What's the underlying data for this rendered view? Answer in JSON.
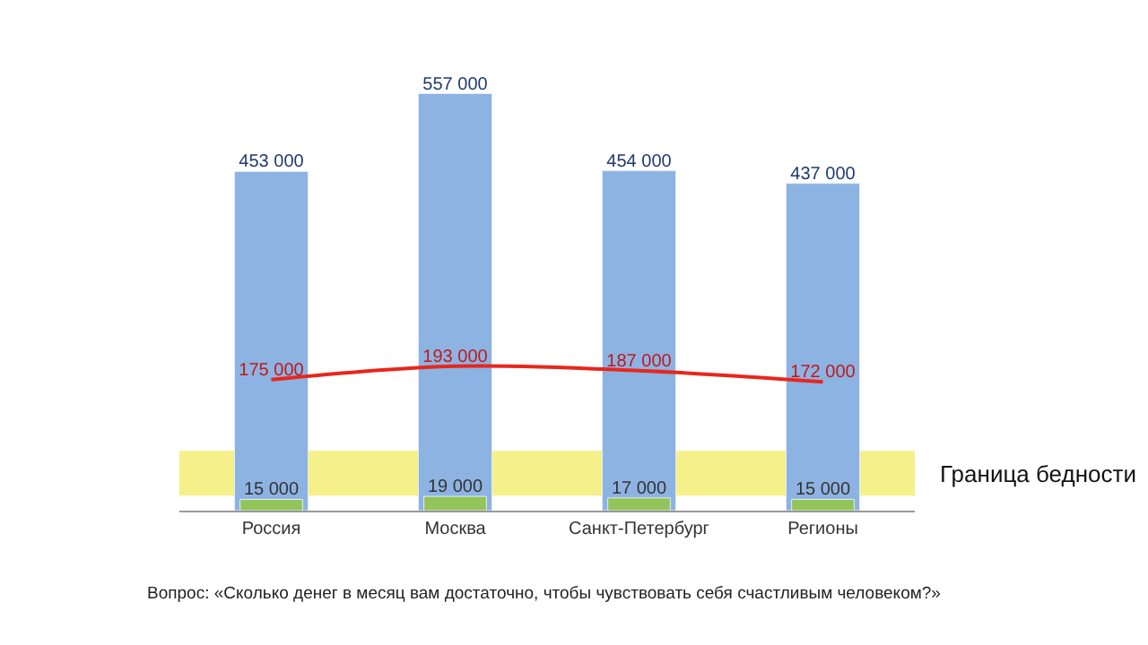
{
  "chart_data": {
    "type": "bar",
    "categories": [
      "Россия",
      "Москва",
      "Санкт-Петербург",
      "Регионы"
    ],
    "series": [
      {
        "color": "#8db3e2",
        "values": [
          453000,
          557000,
          454000,
          437000
        ],
        "value_labels": [
          "453 000",
          "557 000",
          "454 000",
          "437 000"
        ]
      },
      {
        "type": "line",
        "color": "#e8261c",
        "values": [
          175000,
          193000,
          187000,
          172000
        ],
        "value_labels": [
          "175 000",
          "193 000",
          "187 000",
          "172 000"
        ]
      },
      {
        "color": "#92c45a",
        "values": [
          15000,
          19000,
          17000,
          15000
        ],
        "value_labels": [
          "15 000",
          "19 000",
          "17 000",
          "15 000"
        ]
      }
    ],
    "bands": [
      {
        "axis": "y",
        "from": 20000,
        "to": 80000,
        "label": "Граница бедности",
        "color": "#f5f08a"
      }
    ],
    "annotations": [
      "Вопрос: «Сколько денег в месяц вам достаточно, чтобы чувствовать себя счастливым человеком?»"
    ]
  }
}
